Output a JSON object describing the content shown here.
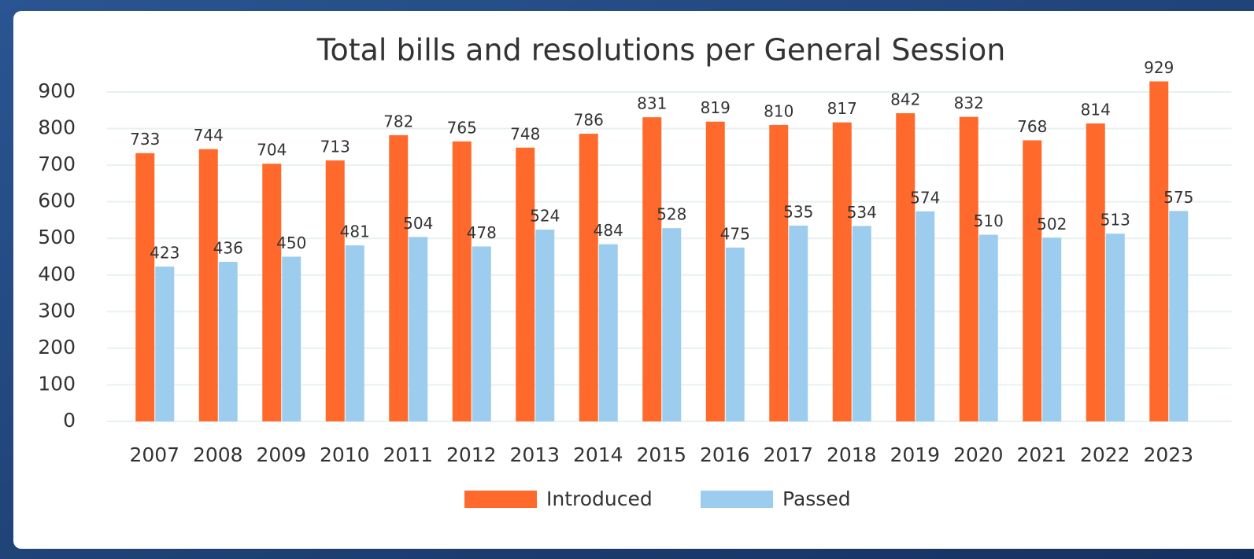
{
  "chart_data": {
    "type": "bar",
    "title": "Total bills and resolutions per General Session",
    "categories": [
      "2007",
      "2008",
      "2009",
      "2010",
      "2011",
      "2012",
      "2013",
      "2014",
      "2015",
      "2016",
      "2017",
      "2018",
      "2019",
      "2020",
      "2021",
      "2022",
      "2023"
    ],
    "series": [
      {
        "name": "Introduced",
        "color": "#ff6a2c",
        "values": [
          733,
          744,
          704,
          713,
          782,
          765,
          748,
          786,
          831,
          819,
          810,
          817,
          842,
          832,
          768,
          814,
          929
        ]
      },
      {
        "name": "Passed",
        "color": "#9ccdee",
        "values": [
          423,
          436,
          450,
          481,
          504,
          478,
          524,
          484,
          528,
          475,
          535,
          534,
          574,
          510,
          502,
          513,
          575
        ]
      }
    ],
    "ylim": [
      0,
      900
    ],
    "yticks": [
      0,
      100,
      200,
      300,
      400,
      500,
      600,
      700,
      800,
      900
    ],
    "grid": true,
    "legend": "bottom"
  }
}
